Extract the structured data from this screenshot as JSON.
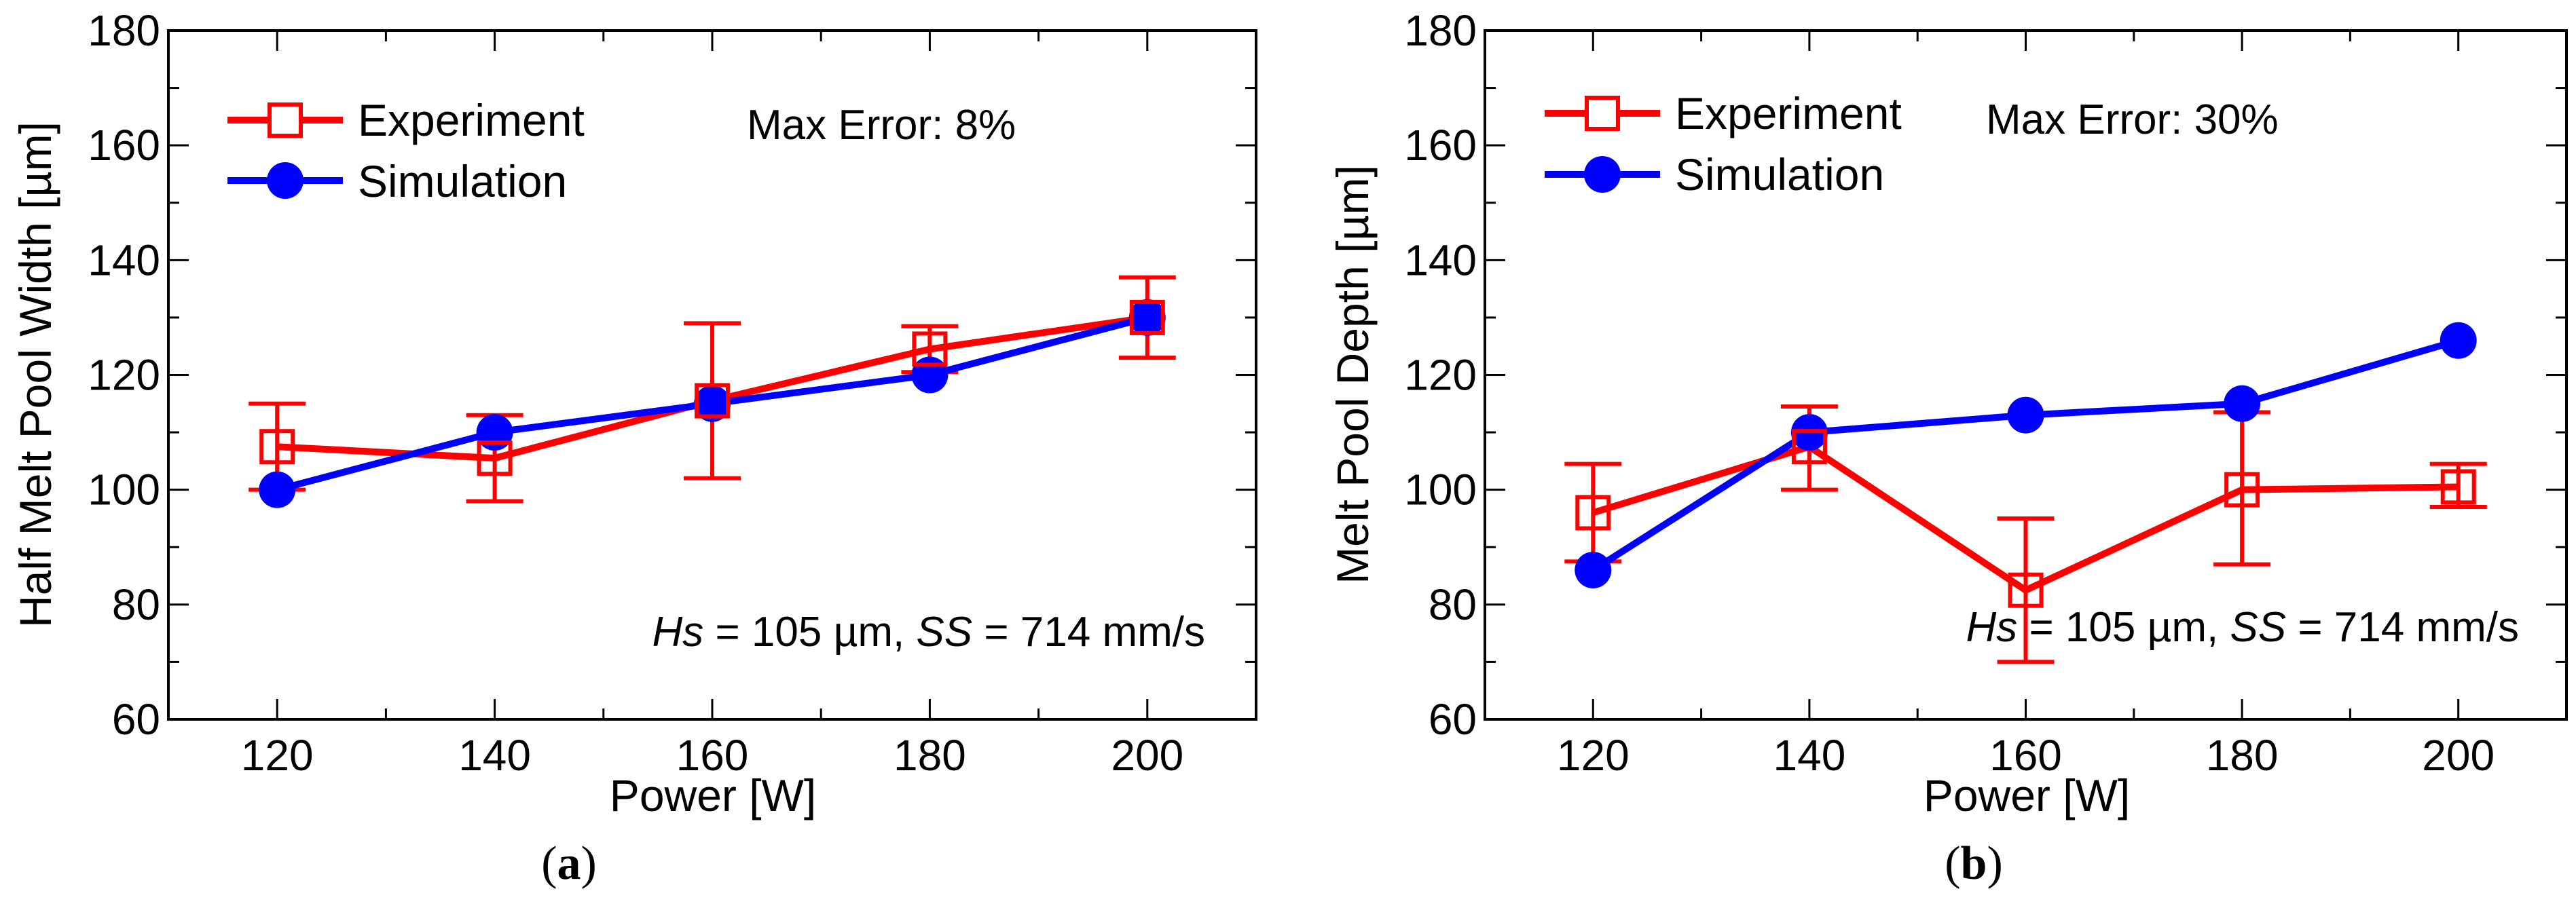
{
  "chart_data": [
    {
      "type": "line",
      "caption": "(a)",
      "caption_letter": "a",
      "xlabel": "Power [W]",
      "ylabel": "Half Melt Pool Width [µm]",
      "xlim": [
        110,
        210
      ],
      "ylim": [
        60,
        180
      ],
      "xticks": [
        120,
        140,
        160,
        180,
        200
      ],
      "xminor": [
        130,
        150,
        170,
        190
      ],
      "yticks": [
        60,
        80,
        100,
        120,
        140,
        160,
        180
      ],
      "yminor": [
        70,
        90,
        110,
        130,
        150,
        170
      ],
      "max_error": "Max Error: 8%",
      "params": {
        "hs_symbol": "Hs",
        "hs_value": " = 105 µm, ",
        "ss_symbol": "SS",
        "ss_value": " = 714 mm/s"
      },
      "series": [
        {
          "name": "Experiment",
          "marker": "open-square",
          "color": "#ff0000",
          "x": [
            120,
            140,
            160,
            180,
            200
          ],
          "y": [
            107.5,
            105.5,
            115.5,
            124.5,
            130
          ],
          "err_lo": [
            100,
            98,
            102,
            120.5,
            123
          ],
          "err_hi": [
            115,
            113,
            129,
            128.5,
            137
          ]
        },
        {
          "name": "Simulation",
          "marker": "filled-circle",
          "color": "#0000ff",
          "x": [
            120,
            140,
            160,
            180,
            200
          ],
          "y": [
            100,
            110,
            115,
            120,
            130
          ]
        }
      ]
    },
    {
      "type": "line",
      "caption": "(b)",
      "caption_letter": "b",
      "xlabel": "Power [W]",
      "ylabel": "Melt Pool Depth [µm]",
      "xlim": [
        110,
        210
      ],
      "ylim": [
        60,
        180
      ],
      "xticks": [
        120,
        140,
        160,
        180,
        200
      ],
      "xminor": [
        130,
        150,
        170,
        190
      ],
      "yticks": [
        60,
        80,
        100,
        120,
        140,
        160,
        180
      ],
      "yminor": [
        70,
        90,
        110,
        130,
        150,
        170
      ],
      "max_error": "Max Error: 30%",
      "params": {
        "hs_symbol": "Hs",
        "hs_value": " = 105 µm, ",
        "ss_symbol": "SS",
        "ss_value": " = 714 mm/s"
      },
      "series": [
        {
          "name": "Experiment",
          "marker": "open-square",
          "color": "#ff0000",
          "x": [
            120,
            140,
            160,
            180,
            200
          ],
          "y": [
            96,
            107.5,
            82.5,
            100,
            100.5
          ],
          "err_lo": [
            87.5,
            100,
            70,
            87,
            97
          ],
          "err_hi": [
            104.5,
            114.5,
            95,
            113.5,
            104.5
          ]
        },
        {
          "name": "Simulation",
          "marker": "filled-circle",
          "color": "#0000ff",
          "x": [
            120,
            140,
            160,
            180,
            200
          ],
          "y": [
            86,
            110,
            113,
            115,
            126
          ]
        }
      ]
    }
  ]
}
